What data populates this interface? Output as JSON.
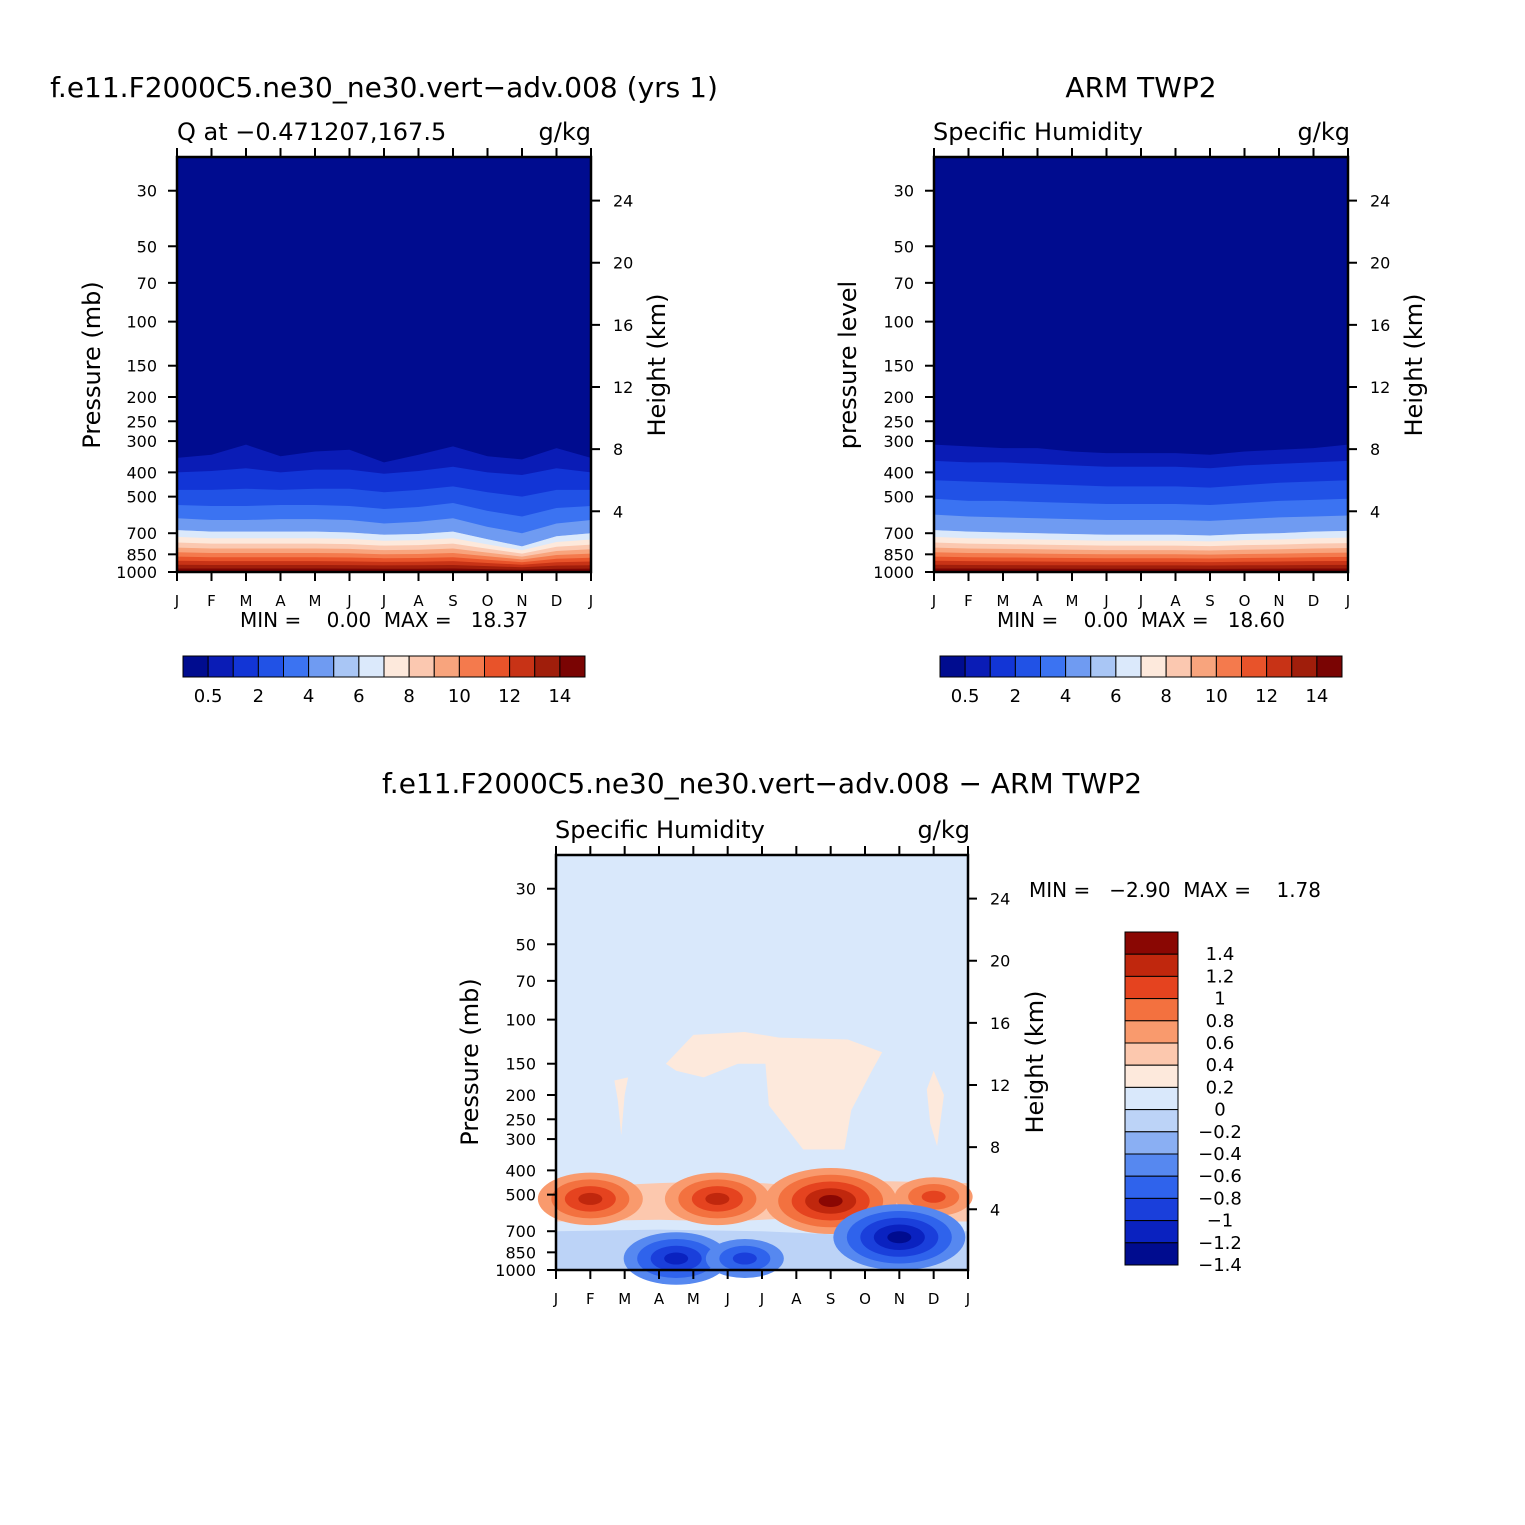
{
  "chart_data": [
    {
      "type": "heatmap",
      "title": "f.e11.F2000C5.ne30_ne30.vert−adv.008 (yrs 1)",
      "subtitle_left": "Q at −0.471207,167.5",
      "units": "g/kg",
      "ylabel": "Pressure (mb)",
      "ylabel_right": "Height (km)",
      "x_ticks": [
        "J",
        "F",
        "M",
        "A",
        "M",
        "J",
        "J",
        "A",
        "S",
        "O",
        "N",
        "D",
        "J"
      ],
      "y_ticks": [
        "30",
        "50",
        "70",
        "100",
        "150",
        "200",
        "250",
        "300",
        "400",
        "500",
        "700",
        "850",
        "1000"
      ],
      "y2_ticks": [
        "24",
        "20",
        "16",
        "12",
        "8",
        "4"
      ],
      "stats": "MIN =    0.00  MAX =   18.37",
      "colorbar_labels": [
        "0.5",
        "2",
        "4",
        "6",
        "8",
        "10",
        "12",
        "14"
      ],
      "moist_top_by_month": [
        350,
        340,
        310,
        345,
        330,
        325,
        365,
        340,
        315,
        345,
        355,
        320,
        350
      ],
      "layer_boundaries_by_month": [
        [
          400,
          395,
          385,
          400,
          390,
          390,
          405,
          395,
          380,
          400,
          410,
          385,
          400
        ],
        [
          470,
          470,
          465,
          470,
          465,
          465,
          480,
          470,
          455,
          480,
          500,
          470,
          470
        ],
        [
          540,
          545,
          545,
          540,
          540,
          545,
          560,
          550,
          530,
          570,
          600,
          555,
          545
        ],
        [
          610,
          620,
          620,
          615,
          615,
          620,
          640,
          630,
          610,
          660,
          700,
          640,
          620
        ],
        [
          680,
          690,
          690,
          690,
          690,
          695,
          710,
          705,
          690,
          740,
          790,
          720,
          700
        ]
      ]
    },
    {
      "type": "heatmap",
      "title": "ARM TWP2",
      "subtitle_left": "Specific Humidity",
      "units": "g/kg",
      "ylabel": "pressure level",
      "ylabel_right": "Height (km)",
      "x_ticks": [
        "J",
        "F",
        "M",
        "A",
        "M",
        "J",
        "J",
        "A",
        "S",
        "O",
        "N",
        "D",
        "J"
      ],
      "y_ticks": [
        "30",
        "50",
        "70",
        "100",
        "150",
        "200",
        "250",
        "300",
        "400",
        "500",
        "700",
        "850",
        "1000"
      ],
      "y2_ticks": [
        "24",
        "20",
        "16",
        "12",
        "8",
        "4"
      ],
      "stats": "MIN =    0.00  MAX =   18.60",
      "colorbar_labels": [
        "0.5",
        "2",
        "4",
        "6",
        "8",
        "10",
        "12",
        "14"
      ],
      "moist_top_by_month": [
        310,
        315,
        320,
        320,
        330,
        335,
        335,
        335,
        340,
        330,
        325,
        320,
        310
      ],
      "layer_boundaries_by_month": [
        [
          360,
          365,
          365,
          370,
          375,
          380,
          380,
          380,
          385,
          375,
          370,
          365,
          360
        ],
        [
          430,
          435,
          440,
          445,
          450,
          455,
          455,
          455,
          460,
          450,
          440,
          435,
          430
        ],
        [
          510,
          520,
          520,
          525,
          530,
          535,
          535,
          535,
          540,
          530,
          520,
          515,
          510
        ],
        [
          590,
          600,
          605,
          610,
          615,
          620,
          620,
          620,
          625,
          615,
          605,
          600,
          595
        ],
        [
          680,
          690,
          695,
          700,
          705,
          710,
          710,
          710,
          715,
          705,
          700,
          690,
          685
        ]
      ]
    },
    {
      "type": "heatmap",
      "title": "f.e11.F2000C5.ne30_ne30.vert−adv.008 − ARM TWP2",
      "subtitle_left": "Specific Humidity",
      "units": "g/kg",
      "ylabel": "Pressure (mb)",
      "ylabel_right": "Height (km)",
      "x_ticks": [
        "J",
        "F",
        "M",
        "A",
        "M",
        "J",
        "J",
        "A",
        "S",
        "O",
        "N",
        "D",
        "J"
      ],
      "y_ticks": [
        "30",
        "50",
        "70",
        "100",
        "150",
        "200",
        "250",
        "300",
        "400",
        "500",
        "700",
        "850",
        "1000"
      ],
      "y2_ticks": [
        "24",
        "20",
        "16",
        "12",
        "8",
        "4"
      ],
      "stats": "MIN =   −2.90  MAX =    1.78",
      "colorbar_labels": [
        "1.4",
        "1.2",
        "1",
        "0.8",
        "0.6",
        "0.4",
        "0.2",
        "0",
        "−0.2",
        "−0.4",
        "−0.6",
        "−0.8",
        "−1",
        "−1.2",
        "−1.4"
      ],
      "anomalies": [
        {
          "month": 1.0,
          "p": 520,
          "sign": "pos",
          "strength": 3
        },
        {
          "month": 4.7,
          "p": 520,
          "sign": "pos",
          "strength": 3
        },
        {
          "month": 8.0,
          "p": 530,
          "sign": "pos",
          "strength": 4
        },
        {
          "month": 11.0,
          "p": 510,
          "sign": "pos",
          "strength": 2
        },
        {
          "month": 10.0,
          "p": 740,
          "sign": "neg",
          "strength": 4
        },
        {
          "month": 3.5,
          "p": 900,
          "sign": "neg",
          "strength": 3
        },
        {
          "month": 5.5,
          "p": 900,
          "sign": "neg",
          "strength": 2
        }
      ]
    }
  ],
  "colors": {
    "seq_palette": [
      "#000c8f",
      "#0a1cb6",
      "#1235d6",
      "#2152e6",
      "#3b73f2",
      "#6f9bf2",
      "#a9c6f5",
      "#dbe9fb",
      "#fde9dc",
      "#fbc8b0",
      "#f8a47d",
      "#f47a4d",
      "#e8532a",
      "#c83316",
      "#a01e0b",
      "#7a0403"
    ],
    "div_palette": [
      "#000c8f",
      "#0a22c0",
      "#1a3fdb",
      "#2f63ec",
      "#5688f0",
      "#8aaff3",
      "#bcd3f7",
      "#d9e8fb",
      "#fde9dc",
      "#fcc8ae",
      "#f99a6d",
      "#f3713f",
      "#e5431f",
      "#c0270d",
      "#8a0703"
    ]
  }
}
